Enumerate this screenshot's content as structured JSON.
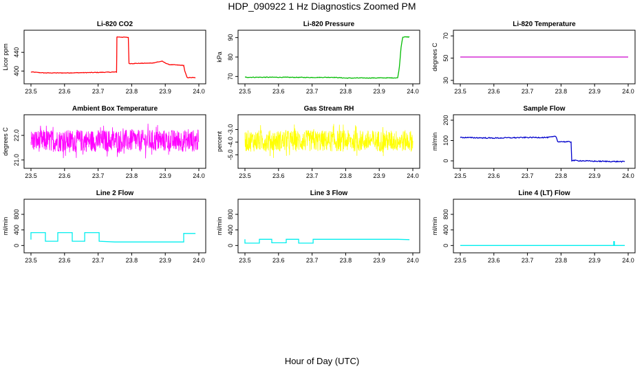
{
  "page": {
    "title": "HDP_090922  1 Hz Diagnostics Zoomed PM",
    "xlabel": "Hour of Day (UTC)"
  },
  "chart_data": [
    {
      "type": "line",
      "title": "Li-820 CO2",
      "ylabel": "Licor ppm",
      "xlim": [
        23.5,
        24.0
      ],
      "ylim": [
        380,
        480
      ],
      "xticks": [
        "23.5",
        "23.6",
        "23.7",
        "23.8",
        "23.9",
        "24.0"
      ],
      "yticks": [
        "400",
        "440"
      ],
      "color": "#ff0000",
      "noise": 0.6,
      "series": [
        {
          "x": [
            23.5,
            23.54,
            23.6,
            23.7,
            23.755,
            23.756,
            23.79,
            23.792,
            23.86,
            23.89,
            23.91,
            23.955,
            23.958,
            23.965,
            23.99
          ],
          "y": [
            398,
            396,
            396,
            397,
            398,
            473,
            472,
            416,
            417,
            421,
            414,
            412,
            400,
            386,
            386
          ]
        }
      ]
    },
    {
      "type": "line",
      "title": "Li-820 Pressure",
      "ylabel": "kPa",
      "xlim": [
        23.5,
        24.0
      ],
      "ylim": [
        68,
        92
      ],
      "xticks": [
        "23.5",
        "23.6",
        "23.7",
        "23.8",
        "23.9",
        "24.0"
      ],
      "yticks": [
        "70",
        "80",
        "90"
      ],
      "color": "#00bb00",
      "noise": 0.15,
      "series": [
        {
          "x": [
            23.5,
            23.6,
            23.7,
            23.76,
            23.8,
            23.955,
            23.96,
            23.965,
            23.97,
            23.99
          ],
          "y": [
            69.6,
            69.6,
            69.5,
            69.6,
            69.2,
            69.3,
            75,
            85,
            90.3,
            90.3
          ]
        }
      ]
    },
    {
      "type": "line",
      "title": "Li-820 Temperature",
      "ylabel": "degrees C",
      "xlim": [
        23.5,
        24.0
      ],
      "ylim": [
        30,
        72
      ],
      "xticks": [
        "23.5",
        "23.6",
        "23.7",
        "23.8",
        "23.9",
        "24.0"
      ],
      "yticks": [
        "30",
        "50",
        "70"
      ],
      "color": "#cc00cc",
      "noise": 0,
      "series": [
        {
          "x": [
            23.5,
            24.0
          ],
          "y": [
            51,
            51
          ]
        }
      ]
    },
    {
      "type": "line",
      "title": "Ambient Box Temperature",
      "ylabel": "degrees C",
      "xlim": [
        23.5,
        24.0
      ],
      "ylim": [
        20.8,
        22.7
      ],
      "xticks": [
        "23.5",
        "23.6",
        "23.7",
        "23.8",
        "23.9",
        "24.0"
      ],
      "yticks": [
        "21.0",
        "22.0"
      ],
      "color": "#ff00ff",
      "noise": 0.45,
      "dense": true,
      "series": [
        {
          "x": [
            23.5,
            24.0
          ],
          "y": [
            21.78,
            21.78
          ]
        }
      ]
    },
    {
      "type": "line",
      "title": "Gas Stream RH",
      "ylabel": "percent",
      "xlim": [
        23.5,
        24.0
      ],
      "ylim": [
        -5.8,
        -2.1
      ],
      "xticks": [
        "23.5",
        "23.6",
        "23.7",
        "23.8",
        "23.9",
        "24.0"
      ],
      "yticks": [
        "-5.0",
        "-4.0",
        "-3.0"
      ],
      "color": "#ffff00",
      "noise": 0.85,
      "dense": true,
      "series": [
        {
          "x": [
            23.5,
            24.0
          ],
          "y": [
            -3.9,
            -3.9
          ]
        }
      ]
    },
    {
      "type": "line",
      "title": "Sample Flow",
      "ylabel": "ml/min",
      "xlim": [
        23.5,
        24.0
      ],
      "ylim": [
        -20,
        210
      ],
      "xticks": [
        "23.5",
        "23.6",
        "23.7",
        "23.8",
        "23.9",
        "24.0"
      ],
      "yticks": [
        "0",
        "100",
        "200"
      ],
      "color": "#0000cc",
      "noise": 2.5,
      "series": [
        {
          "x": [
            23.5,
            23.6,
            23.7,
            23.76,
            23.785,
            23.79,
            23.83,
            23.832,
            23.9,
            23.99
          ],
          "y": [
            115,
            112,
            115,
            115,
            120,
            95,
            93,
            2,
            -2,
            -4
          ]
        }
      ]
    },
    {
      "type": "line",
      "title": "Line 2 Flow",
      "ylabel": "ml/min",
      "xlim": [
        23.5,
        24.0
      ],
      "ylim": [
        -100,
        1100
      ],
      "xticks": [
        "23.5",
        "23.6",
        "23.7",
        "23.8",
        "23.9",
        "24.0"
      ],
      "yticks": [
        "0",
        "400",
        "800"
      ],
      "color": "#00eeee",
      "noise": 0,
      "series": [
        {
          "x": [
            23.5,
            23.5,
            23.543,
            23.543,
            23.58,
            23.58,
            23.623,
            23.623,
            23.66,
            23.66,
            23.703,
            23.703,
            23.75,
            23.955,
            23.955,
            23.99
          ],
          "y": [
            150,
            330,
            330,
            110,
            110,
            330,
            330,
            110,
            110,
            330,
            330,
            110,
            90,
            90,
            310,
            310
          ]
        }
      ]
    },
    {
      "type": "line",
      "title": "Line 3 Flow",
      "ylabel": "ml/min",
      "xlim": [
        23.5,
        24.0
      ],
      "ylim": [
        -100,
        1100
      ],
      "xticks": [
        "23.5",
        "23.6",
        "23.7",
        "23.8",
        "23.9",
        "24.0"
      ],
      "yticks": [
        "0",
        "400",
        "800"
      ],
      "color": "#00eeee",
      "noise": 0,
      "series": [
        {
          "x": [
            23.5,
            23.5,
            23.543,
            23.543,
            23.58,
            23.58,
            23.623,
            23.623,
            23.66,
            23.66,
            23.703,
            23.703,
            23.955,
            23.99
          ],
          "y": [
            160,
            60,
            60,
            160,
            160,
            70,
            70,
            160,
            160,
            60,
            60,
            160,
            160,
            150
          ]
        }
      ]
    },
    {
      "type": "line",
      "title": "Line 4 (LT) Flow",
      "ylabel": "ml/min",
      "xlim": [
        23.5,
        24.0
      ],
      "ylim": [
        -100,
        1100
      ],
      "xticks": [
        "23.5",
        "23.6",
        "23.7",
        "23.8",
        "23.9",
        "24.0"
      ],
      "yticks": [
        "0",
        "400",
        "800"
      ],
      "color": "#00eeee",
      "noise": 0,
      "series": [
        {
          "x": [
            23.5,
            23.955,
            23.957,
            23.957,
            23.959,
            23.959,
            23.99
          ],
          "y": [
            0,
            0,
            0,
            100,
            100,
            0,
            0
          ]
        }
      ]
    }
  ]
}
